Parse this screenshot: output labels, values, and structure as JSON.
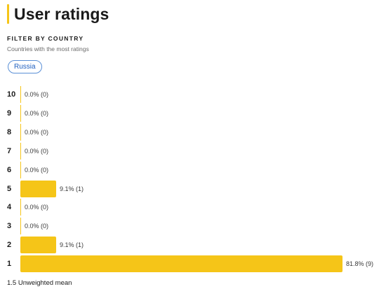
{
  "header": {
    "title": "User ratings",
    "accent_color": "#f5c518"
  },
  "filter": {
    "heading": "FILTER BY COUNTRY",
    "subtitle": "Countries with the most ratings",
    "chips": [
      "Russia"
    ],
    "chip_color": "#1f5fbf"
  },
  "chart_data": {
    "type": "bar",
    "orientation": "horizontal",
    "categories": [
      "10",
      "9",
      "8",
      "7",
      "6",
      "5",
      "4",
      "3",
      "2",
      "1"
    ],
    "percent": [
      0.0,
      0.0,
      0.0,
      0.0,
      0.0,
      9.1,
      0.0,
      0.0,
      9.1,
      81.8
    ],
    "counts": [
      0,
      0,
      0,
      0,
      0,
      1,
      0,
      0,
      1,
      9
    ],
    "value_labels": [
      "0.0% (0)",
      "0.0% (0)",
      "0.0% (0)",
      "0.0% (0)",
      "0.0% (0)",
      "9.1% (1)",
      "0.0% (0)",
      "0.0% (0)",
      "9.1% (1)",
      "81.8% (9)"
    ],
    "bar_color": "#f5c518"
  },
  "summary": {
    "mean_text": "1.5 Unweighted mean"
  }
}
